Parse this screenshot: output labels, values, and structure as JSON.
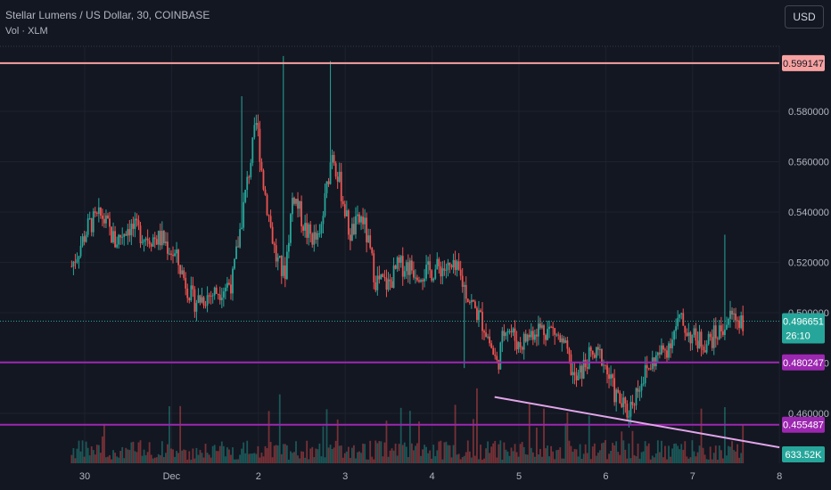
{
  "header": {
    "title": "Stellar Lumens / US Dollar, 30, COINBASE",
    "volume_label": "Vol · XLM",
    "currency_button": "USD"
  },
  "colors": {
    "background": "#131722",
    "grid": "#1e222d",
    "up": "#26a69a",
    "down": "#ef5350",
    "resistance": "#f7a1a1",
    "support": "#9c27b0",
    "trendline": "#e1a5e8",
    "price_label": "#26a69a"
  },
  "chart_data": {
    "type": "candlestick",
    "symbol": "XLMUSD",
    "interval": "30",
    "exchange": "COINBASE",
    "x_ticks": [
      "30",
      "Dec",
      "2",
      "3",
      "4",
      "5",
      "6",
      "7",
      "8"
    ],
    "y_ticks": [
      "0.460000",
      "0.480000",
      "0.500000",
      "0.520000",
      "0.540000",
      "0.560000",
      "0.580000"
    ],
    "y_range": [
      0.447,
      0.603
    ],
    "current_price": "0.496651",
    "countdown": "26:10",
    "volume_last": "633.52K",
    "horizontal_lines": [
      {
        "name": "resistance",
        "value": "0.599147"
      },
      {
        "name": "support-upper",
        "value": "0.480247"
      },
      {
        "name": "support-lower",
        "value": "0.455487"
      }
    ],
    "trendline": {
      "from": {
        "day": 4.72,
        "price": 0.4665
      },
      "to": {
        "day": 8.0,
        "price": 0.4465
      }
    },
    "price_path": [
      [
        -0.15,
        0.5185
      ],
      [
        0.05,
        0.535
      ],
      [
        0.2,
        0.5385
      ],
      [
        0.35,
        0.528
      ],
      [
        0.5,
        0.5345
      ],
      [
        0.7,
        0.5305
      ],
      [
        0.9,
        0.529
      ],
      [
        1.05,
        0.522
      ],
      [
        1.25,
        0.5045
      ],
      [
        1.5,
        0.508
      ],
      [
        1.7,
        0.5125
      ],
      [
        1.85,
        0.547
      ],
      [
        1.98,
        0.576
      ],
      [
        2.05,
        0.553
      ],
      [
        2.2,
        0.522
      ],
      [
        2.3,
        0.514
      ],
      [
        2.4,
        0.548
      ],
      [
        2.55,
        0.532
      ],
      [
        2.7,
        0.528
      ],
      [
        2.85,
        0.565
      ],
      [
        2.95,
        0.549
      ],
      [
        3.05,
        0.531
      ],
      [
        3.2,
        0.538
      ],
      [
        3.35,
        0.513
      ],
      [
        3.5,
        0.511
      ],
      [
        3.6,
        0.518
      ],
      [
        3.7,
        0.519
      ],
      [
        3.8,
        0.517
      ],
      [
        3.95,
        0.516
      ],
      [
        4.1,
        0.518
      ],
      [
        4.3,
        0.516
      ],
      [
        4.45,
        0.504
      ],
      [
        4.6,
        0.495
      ],
      [
        4.75,
        0.479
      ],
      [
        4.85,
        0.496
      ],
      [
        5.0,
        0.487
      ],
      [
        5.2,
        0.494
      ],
      [
        5.4,
        0.493
      ],
      [
        5.55,
        0.484
      ],
      [
        5.65,
        0.472
      ],
      [
        5.8,
        0.482
      ],
      [
        5.95,
        0.483
      ],
      [
        6.1,
        0.468
      ],
      [
        6.25,
        0.46
      ],
      [
        6.4,
        0.473
      ],
      [
        6.55,
        0.481
      ],
      [
        6.7,
        0.486
      ],
      [
        6.85,
        0.497
      ],
      [
        7.0,
        0.49
      ],
      [
        7.15,
        0.488
      ],
      [
        7.3,
        0.492
      ],
      [
        7.45,
        0.499
      ],
      [
        7.6,
        0.4966
      ]
    ]
  }
}
